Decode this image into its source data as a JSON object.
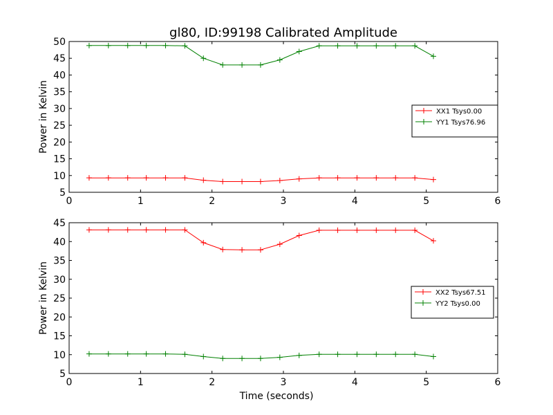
{
  "figure_title": "gl80, ID:99198 Calibrated Amplitude",
  "chart_data": [
    {
      "type": "line",
      "title": "",
      "xlabel": "",
      "ylabel": "Power in Kelvin",
      "xlim": [
        0,
        6
      ],
      "ylim": [
        5,
        50
      ],
      "xticks": [
        "0",
        "1",
        "2",
        "3",
        "4",
        "5",
        "6"
      ],
      "yticks": [
        "5",
        "10",
        "15",
        "20",
        "25",
        "30",
        "35",
        "40",
        "45",
        "50"
      ],
      "grid": false,
      "legend_position": "center-right",
      "x": [
        0.28,
        0.55,
        0.82,
        1.08,
        1.35,
        1.62,
        1.88,
        2.15,
        2.42,
        2.68,
        2.95,
        3.22,
        3.5,
        3.76,
        4.03,
        4.3,
        4.57,
        4.84,
        5.1
      ],
      "series": [
        {
          "name": "XX1 Tsys0.00",
          "color": "#ff0000",
          "values": [
            9.3,
            9.3,
            9.3,
            9.3,
            9.3,
            9.3,
            8.6,
            8.2,
            8.2,
            8.2,
            8.5,
            9.0,
            9.3,
            9.3,
            9.3,
            9.3,
            9.3,
            9.3,
            8.8
          ]
        },
        {
          "name": "YY1 Tsys76.96",
          "color": "#008000",
          "values": [
            48.8,
            48.8,
            48.8,
            48.8,
            48.8,
            48.7,
            45.0,
            43.0,
            43.0,
            43.0,
            44.5,
            47.0,
            48.7,
            48.7,
            48.7,
            48.7,
            48.7,
            48.7,
            45.6
          ]
        }
      ]
    },
    {
      "type": "line",
      "title": "",
      "xlabel": "Time (seconds)",
      "ylabel": "Power in Kelvin",
      "xlim": [
        0,
        6
      ],
      "ylim": [
        5,
        45
      ],
      "xticks": [
        "0",
        "1",
        "2",
        "3",
        "4",
        "5",
        "6"
      ],
      "yticks": [
        "5",
        "10",
        "15",
        "20",
        "25",
        "30",
        "35",
        "40",
        "45"
      ],
      "grid": false,
      "legend_position": "center-right",
      "x": [
        0.28,
        0.55,
        0.82,
        1.08,
        1.35,
        1.62,
        1.88,
        2.15,
        2.42,
        2.68,
        2.95,
        3.22,
        3.5,
        3.76,
        4.03,
        4.3,
        4.57,
        4.84,
        5.1
      ],
      "series": [
        {
          "name": "XX2 Tsys67.51",
          "color": "#ff0000",
          "values": [
            43.1,
            43.1,
            43.1,
            43.1,
            43.1,
            43.1,
            39.7,
            37.9,
            37.8,
            37.8,
            39.3,
            41.6,
            43.0,
            43.0,
            43.0,
            43.0,
            43.0,
            43.0,
            40.2
          ]
        },
        {
          "name": "YY2 Tsys0.00",
          "color": "#008000",
          "values": [
            10.2,
            10.2,
            10.2,
            10.2,
            10.2,
            10.1,
            9.5,
            9.0,
            9.0,
            9.0,
            9.3,
            9.8,
            10.1,
            10.1,
            10.1,
            10.1,
            10.1,
            10.1,
            9.5
          ]
        }
      ]
    }
  ]
}
